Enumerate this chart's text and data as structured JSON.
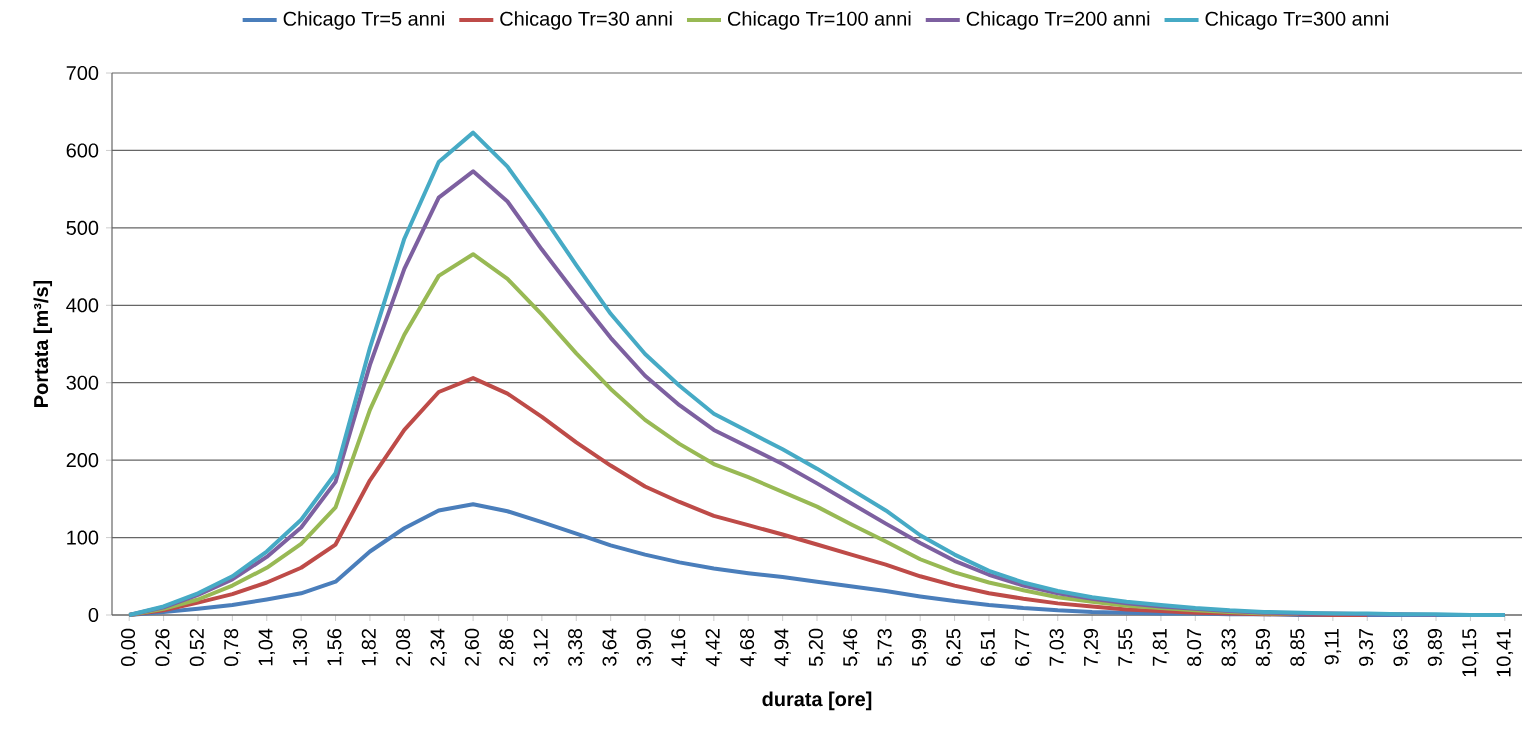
{
  "chart_data": {
    "type": "line",
    "xlabel": "durata [ore]",
    "ylabel": "Portata [m³/s]",
    "categories": [
      "0,00",
      "0,26",
      "0,52",
      "0,78",
      "1,04",
      "1,30",
      "1,56",
      "1,82",
      "2,08",
      "2,34",
      "2,60",
      "2,86",
      "3,12",
      "3,38",
      "3,64",
      "3,90",
      "4,16",
      "4,42",
      "4,68",
      "4,94",
      "5,20",
      "5,46",
      "5,73",
      "5,99",
      "6,25",
      "6,51",
      "6,77",
      "7,03",
      "7,29",
      "7,55",
      "7,81",
      "8,07",
      "8,33",
      "8,59",
      "8,85",
      "9,11",
      "9,37",
      "9,63",
      "9,89",
      "10,15",
      "10,41"
    ],
    "series": [
      {
        "name": "Chicago Tr=5 anni",
        "color": "#4a7ebb",
        "values": [
          0,
          4,
          8,
          13,
          20,
          28,
          43,
          82,
          112,
          135,
          143,
          134,
          120,
          105,
          90,
          78,
          68,
          60,
          54,
          49,
          43,
          37,
          31,
          24,
          18,
          13,
          9,
          6,
          4,
          3,
          2,
          2,
          1,
          1,
          0,
          0,
          0,
          0,
          0,
          0,
          0
        ]
      },
      {
        "name": "Chicago Tr=30 anni",
        "color": "#be4b48",
        "values": [
          0,
          6,
          16,
          27,
          42,
          61,
          91,
          174,
          239,
          288,
          306,
          286,
          256,
          223,
          193,
          166,
          146,
          128,
          116,
          104,
          91,
          78,
          65,
          50,
          38,
          28,
          21,
          15,
          11,
          7,
          5,
          3,
          2,
          1,
          1,
          0,
          0,
          null,
          null,
          null,
          null
        ]
      },
      {
        "name": "Chicago Tr=100 anni",
        "color": "#98b954",
        "values": [
          0,
          8,
          20,
          38,
          61,
          92,
          139,
          265,
          362,
          438,
          466,
          434,
          388,
          338,
          292,
          252,
          221,
          195,
          178,
          159,
          140,
          117,
          95,
          72,
          55,
          42,
          32,
          23,
          17,
          12,
          9,
          6,
          4,
          2,
          2,
          null,
          null,
          null,
          null,
          null,
          null
        ]
      },
      {
        "name": "Chicago Tr=200 anni",
        "color": "#7d60a0",
        "values": [
          0,
          10,
          26,
          46,
          75,
          113,
          172,
          323,
          447,
          539,
          573,
          534,
          472,
          414,
          358,
          309,
          271,
          239,
          217,
          195,
          170,
          144,
          118,
          93,
          70,
          52,
          38,
          28,
          21,
          15,
          11,
          8,
          5,
          3,
          2,
          2,
          1,
          1,
          0,
          null,
          null
        ]
      },
      {
        "name": "Chicago Tr=300 anni",
        "color": "#46aac5",
        "values": [
          0,
          11,
          28,
          50,
          82,
          123,
          183,
          345,
          486,
          585,
          623,
          579,
          517,
          452,
          389,
          337,
          296,
          260,
          237,
          214,
          189,
          162,
          135,
          103,
          78,
          57,
          42,
          31,
          23,
          17,
          13,
          9,
          6,
          4,
          3,
          2,
          2,
          1,
          1,
          0,
          0
        ]
      }
    ],
    "ylim": [
      0,
      700
    ],
    "yticks": [
      0,
      100,
      200,
      300,
      400,
      500,
      600,
      700
    ],
    "grid": "y",
    "legend": "top",
    "marker": "none",
    "line_style": "solid"
  }
}
